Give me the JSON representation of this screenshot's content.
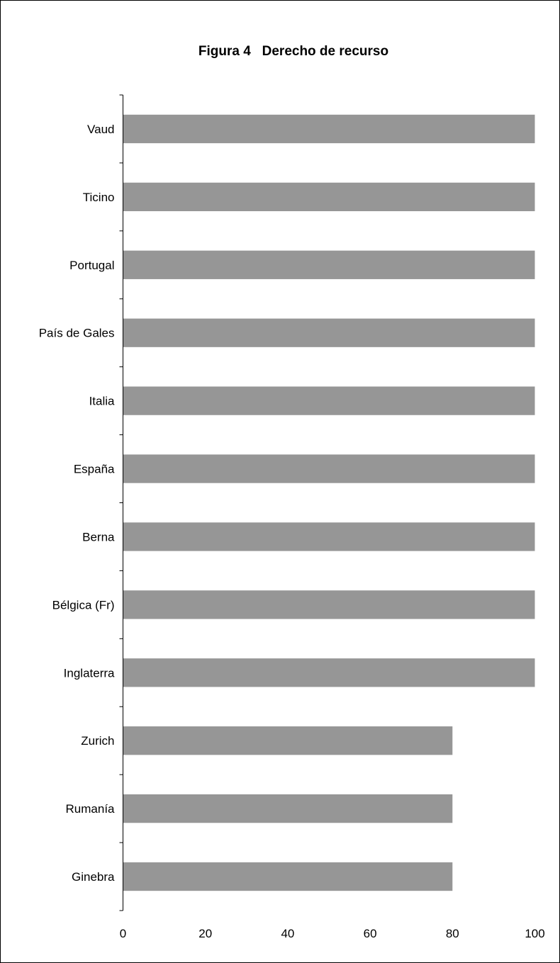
{
  "chart_data": {
    "type": "bar",
    "orientation": "horizontal",
    "title": "Figura 4   Derecho de recurso",
    "xlabel": "",
    "ylabel": "",
    "categories": [
      "Vaud",
      "Ticino",
      "Portugal",
      "País de Gales",
      "Italia",
      "España",
      "Berna",
      "Bélgica (Fr)",
      "Inglaterra",
      "Zurich",
      "Rumanía",
      "Ginebra"
    ],
    "values": [
      100,
      100,
      100,
      100,
      100,
      100,
      100,
      100,
      100,
      80,
      80,
      80
    ],
    "xlim": [
      0,
      100
    ],
    "x_ticks": [
      "0",
      "20",
      "40",
      "60",
      "80",
      "100"
    ],
    "grid": false,
    "legend": "none",
    "bar_color": "#969696"
  }
}
